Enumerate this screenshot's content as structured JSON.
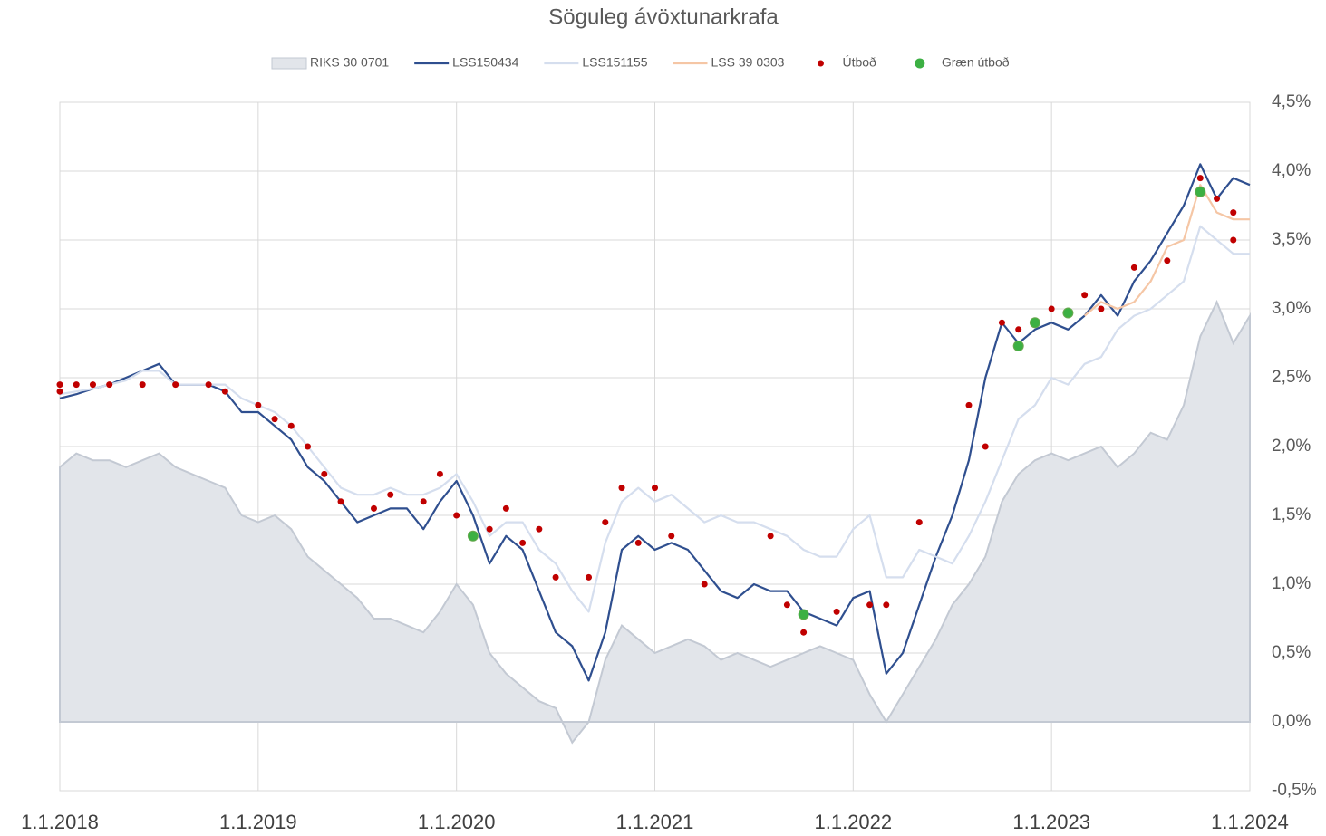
{
  "chart_data": {
    "type": "line",
    "title": "Söguleg ávöxtunarkrafa",
    "x": [
      "2018-01",
      "2018-02",
      "2018-03",
      "2018-04",
      "2018-05",
      "2018-06",
      "2018-07",
      "2018-08",
      "2018-09",
      "2018-10",
      "2018-11",
      "2018-12",
      "2019-01",
      "2019-02",
      "2019-03",
      "2019-04",
      "2019-05",
      "2019-06",
      "2019-07",
      "2019-08",
      "2019-09",
      "2019-10",
      "2019-11",
      "2019-12",
      "2020-01",
      "2020-02",
      "2020-03",
      "2020-04",
      "2020-05",
      "2020-06",
      "2020-07",
      "2020-08",
      "2020-09",
      "2020-10",
      "2020-11",
      "2020-12",
      "2021-01",
      "2021-02",
      "2021-03",
      "2021-04",
      "2021-05",
      "2021-06",
      "2021-07",
      "2021-08",
      "2021-09",
      "2021-10",
      "2021-11",
      "2021-12",
      "2022-01",
      "2022-02",
      "2022-03",
      "2022-04",
      "2022-05",
      "2022-06",
      "2022-07",
      "2022-08",
      "2022-09",
      "2022-10",
      "2022-11",
      "2022-12",
      "2023-01",
      "2023-02",
      "2023-03",
      "2023-04",
      "2023-05",
      "2023-06",
      "2023-07",
      "2023-08",
      "2023-09",
      "2023-10",
      "2023-11",
      "2023-12",
      "2024-01"
    ],
    "series": [
      {
        "name": "RIKS 30 0701",
        "kind": "area",
        "color": "#e2e5ea",
        "values": [
          1.85,
          1.95,
          1.9,
          1.9,
          1.85,
          1.9,
          1.95,
          1.85,
          1.8,
          1.75,
          1.7,
          1.5,
          1.45,
          1.5,
          1.4,
          1.2,
          1.1,
          1.0,
          0.9,
          0.75,
          0.75,
          0.7,
          0.65,
          0.8,
          1.0,
          0.85,
          0.5,
          0.35,
          0.25,
          0.15,
          0.1,
          -0.15,
          0.0,
          0.45,
          0.7,
          0.6,
          0.5,
          0.55,
          0.6,
          0.55,
          0.45,
          0.5,
          0.45,
          0.4,
          0.45,
          0.5,
          0.55,
          0.5,
          0.45,
          0.2,
          0.0,
          0.2,
          0.4,
          0.6,
          0.85,
          1.0,
          1.2,
          1.6,
          1.8,
          1.9,
          1.95,
          1.9,
          1.95,
          2.0,
          1.85,
          1.95,
          2.1,
          2.05,
          2.3,
          2.8,
          3.05,
          2.75,
          2.95
        ]
      },
      {
        "name": "LSS150434",
        "color": "#2f4f8f",
        "values": [
          2.35,
          2.38,
          2.42,
          2.45,
          2.5,
          2.55,
          2.6,
          2.45,
          2.45,
          2.45,
          2.4,
          2.25,
          2.25,
          2.15,
          2.05,
          1.85,
          1.75,
          1.6,
          1.45,
          1.5,
          1.55,
          1.55,
          1.4,
          1.6,
          1.75,
          1.5,
          1.15,
          1.35,
          1.25,
          0.95,
          0.65,
          0.55,
          0.3,
          0.65,
          1.25,
          1.35,
          1.25,
          1.3,
          1.25,
          1.1,
          0.95,
          0.9,
          1.0,
          0.95,
          0.95,
          0.8,
          0.75,
          0.7,
          0.9,
          0.95,
          0.35,
          0.5,
          0.85,
          1.2,
          1.5,
          1.9,
          2.5,
          2.9,
          2.75,
          2.85,
          2.9,
          2.85,
          2.95,
          3.1,
          2.95,
          3.2,
          3.35,
          3.55,
          3.75,
          4.05,
          3.8,
          3.95,
          3.9
        ]
      },
      {
        "name": "LSS151155",
        "color": "#d5deee",
        "values": [
          2.38,
          2.4,
          2.42,
          2.45,
          2.48,
          2.55,
          2.55,
          2.45,
          2.45,
          2.45,
          2.45,
          2.35,
          2.3,
          2.25,
          2.15,
          2.0,
          1.85,
          1.7,
          1.65,
          1.65,
          1.7,
          1.65,
          1.65,
          1.7,
          1.8,
          1.6,
          1.35,
          1.45,
          1.45,
          1.25,
          1.15,
          0.95,
          0.8,
          1.3,
          1.6,
          1.7,
          1.6,
          1.65,
          1.55,
          1.45,
          1.5,
          1.45,
          1.45,
          1.4,
          1.35,
          1.25,
          1.2,
          1.2,
          1.4,
          1.5,
          1.05,
          1.05,
          1.25,
          1.2,
          1.15,
          1.35,
          1.6,
          1.9,
          2.2,
          2.3,
          2.5,
          2.45,
          2.6,
          2.65,
          2.85,
          2.95,
          3.0,
          3.1,
          3.2,
          3.6,
          3.5,
          3.4,
          3.4
        ]
      },
      {
        "name": "LSS 39 0303",
        "color": "#f5c6a5",
        "values": [
          null,
          null,
          null,
          null,
          null,
          null,
          null,
          null,
          null,
          null,
          null,
          null,
          null,
          null,
          null,
          null,
          null,
          null,
          null,
          null,
          null,
          null,
          null,
          null,
          null,
          null,
          null,
          null,
          null,
          null,
          null,
          null,
          null,
          null,
          null,
          null,
          null,
          null,
          null,
          null,
          null,
          null,
          null,
          null,
          null,
          null,
          null,
          null,
          null,
          null,
          null,
          null,
          null,
          null,
          null,
          null,
          null,
          null,
          null,
          null,
          null,
          null,
          2.95,
          3.05,
          3.0,
          3.05,
          3.2,
          3.45,
          3.5,
          3.9,
          3.7,
          3.65,
          3.65
        ]
      }
    ],
    "points": [
      {
        "name": "Útboð",
        "color": "#c00000",
        "x": [
          "2018-01",
          "2018-01",
          "2018-02",
          "2018-03",
          "2018-04",
          "2018-06",
          "2018-08",
          "2018-10",
          "2018-11",
          "2019-01",
          "2019-02",
          "2019-03",
          "2019-04",
          "2019-05",
          "2019-06",
          "2019-08",
          "2019-09",
          "2019-11",
          "2019-12",
          "2020-01",
          "2020-03",
          "2020-04",
          "2020-05",
          "2020-06",
          "2020-07",
          "2020-09",
          "2020-10",
          "2020-11",
          "2020-12",
          "2021-01",
          "2021-02",
          "2021-04",
          "2021-08",
          "2021-09",
          "2021-10",
          "2021-12",
          "2022-02",
          "2022-03",
          "2022-05",
          "2022-08",
          "2022-09",
          "2022-10",
          "2022-11",
          "2023-01",
          "2023-03",
          "2023-04",
          "2023-06",
          "2023-08",
          "2023-10",
          "2023-11",
          "2023-12",
          "2023-12"
        ],
        "values": [
          2.4,
          2.45,
          2.45,
          2.45,
          2.45,
          2.45,
          2.45,
          2.45,
          2.4,
          2.3,
          2.2,
          2.15,
          2.0,
          1.8,
          1.6,
          1.55,
          1.65,
          1.6,
          1.8,
          1.5,
          1.4,
          1.55,
          1.3,
          1.4,
          1.05,
          1.05,
          1.45,
          1.7,
          1.3,
          1.7,
          1.35,
          1.0,
          1.35,
          0.85,
          0.65,
          0.8,
          0.85,
          0.85,
          1.45,
          2.3,
          2.0,
          2.9,
          2.85,
          3.0,
          3.1,
          3.0,
          3.3,
          3.35,
          3.95,
          3.8,
          3.7,
          3.5
        ]
      },
      {
        "name": "Græn útboð",
        "color": "#3cb043",
        "x": [
          "2020-02",
          "2021-10",
          "2022-11",
          "2022-12",
          "2023-02",
          "2023-10"
        ],
        "values": [
          1.35,
          0.78,
          2.73,
          2.9,
          2.97,
          3.85
        ]
      }
    ],
    "ylim": [
      -0.5,
      4.5
    ],
    "yticks": [
      {
        "value": -0.5,
        "label": "-0,5%"
      },
      {
        "value": 0,
        "label": "0,0%"
      },
      {
        "value": 0.5,
        "label": "0,5%"
      },
      {
        "value": 1,
        "label": "1,0%"
      },
      {
        "value": 1.5,
        "label": "1,5%"
      },
      {
        "value": 2,
        "label": "2,0%"
      },
      {
        "value": 2.5,
        "label": "2,5%"
      },
      {
        "value": 3,
        "label": "3,0%"
      },
      {
        "value": 3.5,
        "label": "3,5%"
      },
      {
        "value": 4,
        "label": "4,0%"
      },
      {
        "value": 4.5,
        "label": "4,5%"
      }
    ],
    "xlim": [
      "2018-01-01",
      "2024-01-01"
    ],
    "xticks": [
      {
        "value": "2018-01-01",
        "label": "1.1.2018"
      },
      {
        "value": "2019-01-01",
        "label": "1.1.2019"
      },
      {
        "value": "2020-01-01",
        "label": "1.1.2020"
      },
      {
        "value": "2021-01-01",
        "label": "1.1.2021"
      },
      {
        "value": "2022-01-01",
        "label": "1.1.2022"
      },
      {
        "value": "2023-01-01",
        "label": "1.1.2023"
      },
      {
        "value": "2024-01-01",
        "label": "1.1.2024"
      }
    ],
    "grid": true,
    "legend": "top"
  }
}
